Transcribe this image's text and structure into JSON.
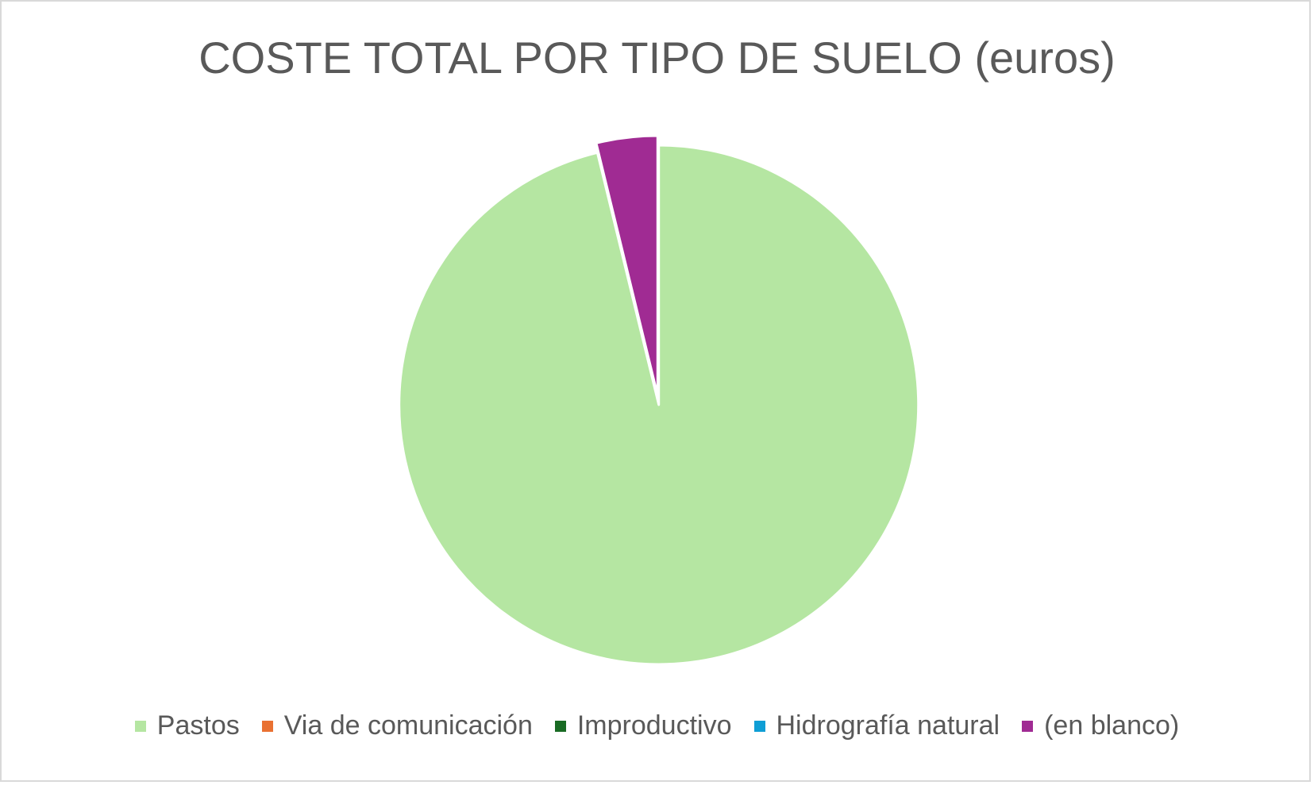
{
  "chart_data": {
    "type": "pie",
    "title": "COSTE TOTAL POR TIPO DE SUELO (euros)",
    "legend_position": "bottom",
    "slices": [
      {
        "label": "Pastos",
        "value": 96.2,
        "color": "#b5e6a2"
      },
      {
        "label": "Via de comunicación",
        "value": 0,
        "color": "#e97132"
      },
      {
        "label": "Improductivo",
        "value": 0,
        "color": "#196b24"
      },
      {
        "label": "Hidrografía natural",
        "value": 0,
        "color": "#0f9ed5"
      },
      {
        "label": "(en blanco)",
        "value": 3.8,
        "color": "#a02b93"
      }
    ]
  }
}
